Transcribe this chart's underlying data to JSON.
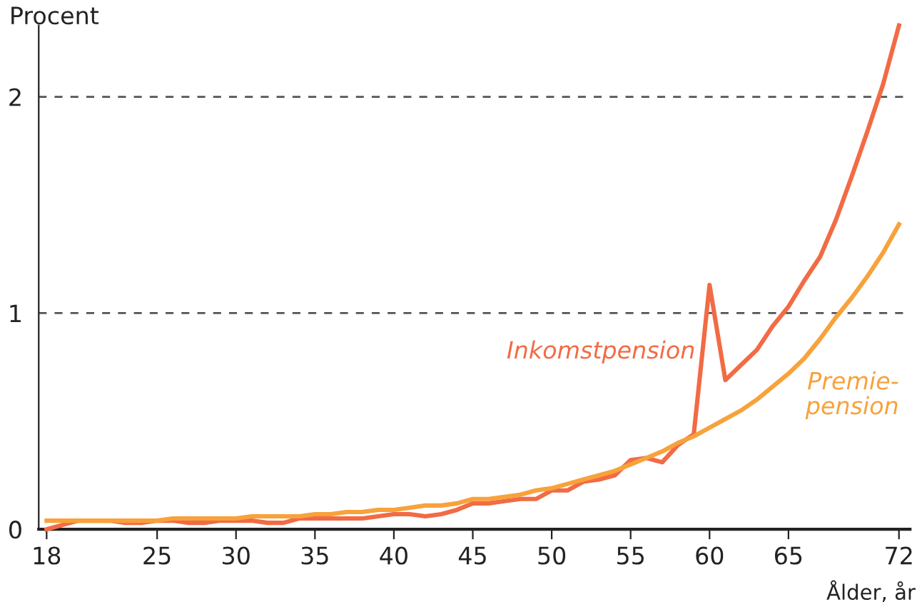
{
  "chart_data": {
    "type": "line",
    "ylabel": "Procent",
    "xlabel": "Ålder, år",
    "x": [
      18,
      19,
      20,
      21,
      22,
      23,
      24,
      25,
      26,
      27,
      28,
      29,
      30,
      31,
      32,
      33,
      34,
      35,
      36,
      37,
      38,
      39,
      40,
      41,
      42,
      43,
      44,
      45,
      46,
      47,
      48,
      49,
      50,
      51,
      52,
      53,
      54,
      55,
      56,
      57,
      58,
      59,
      60,
      61,
      62,
      63,
      64,
      65,
      66,
      67,
      68,
      69,
      70,
      71,
      72
    ],
    "series": [
      {
        "name": "Inkomstpension",
        "color": "#f26b44",
        "values": [
          0.0,
          0.02,
          0.04,
          0.04,
          0.04,
          0.03,
          0.03,
          0.04,
          0.04,
          0.03,
          0.03,
          0.04,
          0.04,
          0.04,
          0.03,
          0.03,
          0.05,
          0.05,
          0.05,
          0.05,
          0.05,
          0.06,
          0.07,
          0.07,
          0.06,
          0.07,
          0.09,
          0.12,
          0.12,
          0.13,
          0.14,
          0.14,
          0.18,
          0.18,
          0.22,
          0.23,
          0.25,
          0.32,
          0.33,
          0.31,
          0.39,
          0.44,
          1.13,
          0.69,
          0.76,
          0.83,
          0.94,
          1.03,
          1.15,
          1.26,
          1.43,
          1.63,
          1.84,
          2.06,
          2.33
        ]
      },
      {
        "name": "Premie-\npension",
        "color": "#f7a23b",
        "values": [
          0.04,
          0.04,
          0.04,
          0.04,
          0.04,
          0.04,
          0.04,
          0.04,
          0.05,
          0.05,
          0.05,
          0.05,
          0.05,
          0.06,
          0.06,
          0.06,
          0.06,
          0.07,
          0.07,
          0.08,
          0.08,
          0.09,
          0.09,
          0.1,
          0.11,
          0.11,
          0.12,
          0.14,
          0.14,
          0.15,
          0.16,
          0.18,
          0.19,
          0.21,
          0.23,
          0.25,
          0.27,
          0.3,
          0.33,
          0.36,
          0.4,
          0.43,
          0.47,
          0.51,
          0.55,
          0.6,
          0.66,
          0.72,
          0.79,
          0.88,
          0.98,
          1.07,
          1.17,
          1.28,
          1.41
        ]
      }
    ],
    "xlim": [
      17.5,
      72.7
    ],
    "xticks": [
      18,
      25,
      30,
      35,
      40,
      45,
      50,
      55,
      60,
      65,
      72
    ],
    "ylim": [
      0,
      2.33
    ],
    "yticks": [
      0,
      1,
      2
    ],
    "grid": "y",
    "marker": "none",
    "line_style": "solid",
    "legend": false
  }
}
